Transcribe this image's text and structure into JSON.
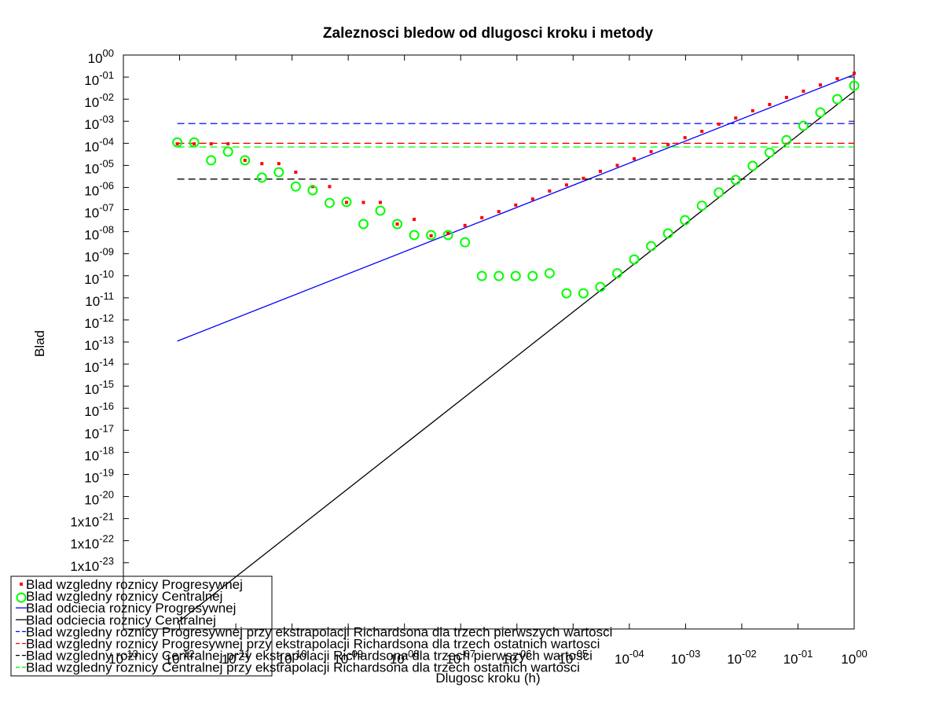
{
  "chart_data": {
    "type": "line",
    "title": "Zaleznosci bledow od dlugosci kroku i metody",
    "xlabel": "Dlugosc kroku (h)",
    "ylabel": "Blad",
    "xscale": "log",
    "yscale": "log",
    "xlim": [
      1e-13,
      1
    ],
    "ylim": [
      1e-26,
      1
    ],
    "xticks": [
      {
        "value": 1e-13,
        "label": "10^-13"
      },
      {
        "value": 1e-12,
        "label": "10^-12"
      },
      {
        "value": 1e-11,
        "label": "10^-11"
      },
      {
        "value": 1e-10,
        "label": "10^-10"
      },
      {
        "value": 1e-09,
        "label": "10^-09"
      },
      {
        "value": 1e-08,
        "label": "10^-08"
      },
      {
        "value": 1e-07,
        "label": "10^-07"
      },
      {
        "value": 1e-06,
        "label": "10^-06"
      },
      {
        "value": 1e-05,
        "label": "10^-05"
      },
      {
        "value": 0.0001,
        "label": "10^-04"
      },
      {
        "value": 0.001,
        "label": "10^-03"
      },
      {
        "value": 0.01,
        "label": "10^-02"
      },
      {
        "value": 0.1,
        "label": "10^-01"
      },
      {
        "value": 1,
        "label": "10^00"
      }
    ],
    "yticks": [
      {
        "value": 1,
        "label": "10^00"
      },
      {
        "value": 0.1,
        "label": "10^-01"
      },
      {
        "value": 0.01,
        "label": "10^-02"
      },
      {
        "value": 0.001,
        "label": "10^-03"
      },
      {
        "value": 0.0001,
        "label": "10^-04"
      },
      {
        "value": 1e-05,
        "label": "10^-05"
      },
      {
        "value": 1e-06,
        "label": "10^-06"
      },
      {
        "value": 1e-07,
        "label": "10^-07"
      },
      {
        "value": 1e-08,
        "label": "10^-08"
      },
      {
        "value": 1e-09,
        "label": "10^-09"
      },
      {
        "value": 1e-10,
        "label": "10^-10"
      },
      {
        "value": 1e-11,
        "label": "10^-11"
      },
      {
        "value": 1e-12,
        "label": "10^-12"
      },
      {
        "value": 1e-13,
        "label": "10^-13"
      },
      {
        "value": 1e-14,
        "label": "10^-14"
      },
      {
        "value": 1e-15,
        "label": "10^-15"
      },
      {
        "value": 1e-16,
        "label": "10^-16"
      },
      {
        "value": 1e-17,
        "label": "10^-17"
      },
      {
        "value": 1e-18,
        "label": "10^-18"
      },
      {
        "value": 1e-19,
        "label": "10^-19"
      },
      {
        "value": 1e-20,
        "label": "10^-20"
      },
      {
        "value": 1e-21,
        "label": "1x10^-21"
      },
      {
        "value": 1e-22,
        "label": "1x10^-22"
      },
      {
        "value": 1e-23,
        "label": "1x10^-23"
      }
    ],
    "legend": "lower left",
    "x": [
      9.094947e-13,
      1.818989e-12,
      3.637979e-12,
      7.275958e-12,
      1.455192e-11,
      2.910383e-11,
      5.820766e-11,
      1.164153e-10,
      2.328306e-10,
      4.656613e-10,
      9.313226e-10,
      1.862645e-09,
      3.72529e-09,
      7.450581e-09,
      1.490116e-08,
      2.980232e-08,
      5.960464e-08,
      1.192093e-07,
      2.384186e-07,
      4.768372e-07,
      9.536743e-07,
      1.907349e-06,
      3.814697e-06,
      7.629395e-06,
      1.525879e-05,
      3.051758e-05,
      6.103516e-05,
      0.0001220703,
      0.0002441406,
      0.0004882813,
      0.0009765625,
      0.001953125,
      0.00390625,
      0.0078125,
      0.015625,
      0.03125,
      0.0625,
      0.125,
      0.25,
      0.5,
      1
    ],
    "series": [
      {
        "name": "Blad wzgledny roznicy Progresywnej",
        "color": "#ff0000",
        "marker": "dot",
        "linestyle": "none",
        "values": [
          9.5e-05,
          9.5e-05,
          9.5e-05,
          9.5e-05,
          1.7e-05,
          1.2e-05,
          1.2e-05,
          4.9e-06,
          1.1e-06,
          1.1e-06,
          2.1e-07,
          2.1e-07,
          2.1e-07,
          2.2e-08,
          3.6e-08,
          6.5e-09,
          8.3e-09,
          1.9e-08,
          4.3e-08,
          8.1e-08,
          1.6e-07,
          3e-07,
          6.9e-07,
          1.3e-06,
          2.6e-06,
          5.4e-06,
          1e-05,
          2e-05,
          4.2e-05,
          8.7e-05,
          0.00018,
          0.00035,
          0.00074,
          0.0014,
          0.003,
          0.0057,
          0.012,
          0.023,
          0.044,
          0.085,
          0.15
        ]
      },
      {
        "name": "Blad wzgledny roznicy Centralnej",
        "color": "#00ff00",
        "marker": "circle",
        "linestyle": "none",
        "values": [
          0.00011,
          0.00011,
          1.7e-05,
          4.2e-05,
          1.7e-05,
          2.8e-06,
          4.9e-06,
          1.1e-06,
          7.5e-07,
          2e-07,
          2.2e-07,
          2.2e-08,
          8.9e-08,
          2.2e-08,
          7e-09,
          7e-09,
          7e-09,
          3.3e-09,
          9.8e-11,
          9.8e-11,
          9.8e-11,
          9.8e-11,
          1.3e-10,
          1.6e-11,
          1.6e-11,
          3.1e-11,
          1.3e-10,
          5.5e-10,
          2.2e-09,
          8.3e-09,
          3.3e-08,
          1.5e-07,
          5.9e-07,
          2.2e-06,
          9.5e-06,
          3.8e-05,
          0.00014,
          0.00062,
          0.0025,
          0.01,
          0.041
        ]
      },
      {
        "name": "Blad odciecia roznicy Progresywnej",
        "color": "#0000ff",
        "marker": "none",
        "linestyle": "solid",
        "x": [
          9.094947e-13,
          1
        ],
        "values": [
          1.1e-13,
          0.13
        ]
      },
      {
        "name": "Blad odciecia roznicy Centralnej",
        "color": "#000000",
        "marker": "none",
        "linestyle": "solid",
        "x": [
          9.094947e-13,
          1
        ],
        "values": [
          1.9e-26,
          0.023
        ]
      },
      {
        "name": "Blad wzgledny roznicy Progresywnej przy ekstrapolacji Richardsona dla trzech pierwszych wartosci",
        "color": "#0000ff",
        "marker": "none",
        "linestyle": "dashed",
        "x": [
          9.094947e-13,
          1
        ],
        "values": [
          0.00079,
          0.00079
        ]
      },
      {
        "name": "Blad wzgledny roznicy Progresywnej przy ekstrapolacji Richardsona dla trzech ostatnich wartosci",
        "color": "#ff0000",
        "marker": "none",
        "linestyle": "dashed",
        "x": [
          9.094947e-13,
          1
        ],
        "values": [
          0.0001,
          0.0001
        ]
      },
      {
        "name": "Blad wzgledny roznicy Centralnej przy ekstrapolacji Richardsona dla trzech pierwszych wartosci",
        "color": "#000000",
        "marker": "none",
        "linestyle": "dashed",
        "x": [
          9.094947e-13,
          1
        ],
        "values": [
          2.4e-06,
          2.4e-06
        ]
      },
      {
        "name": "Blad wzgledny roznicy Centralnej przy ekstrapolacji Richardsona dla trzech ostatnich wartosci",
        "color": "#00ff00",
        "marker": "none",
        "linestyle": "dashed",
        "x": [
          9.094947e-13,
          1
        ],
        "values": [
          6.8e-05,
          6.8e-05
        ]
      }
    ]
  }
}
